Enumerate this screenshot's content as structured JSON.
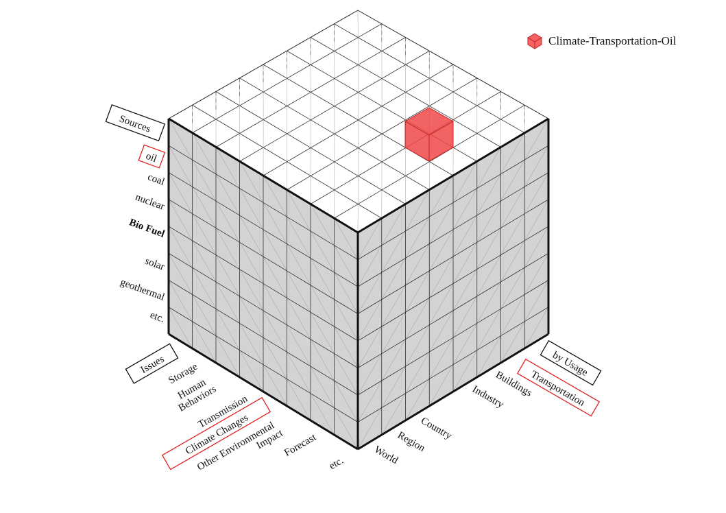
{
  "legend": {
    "label": "Climate-Transportation-Oil",
    "color": "#f04848"
  },
  "axes": {
    "sources": {
      "title": "Sources",
      "items": [
        "oil",
        "coal",
        "nuclear",
        "Bio Fuel",
        "solar",
        "geothermal",
        "etc."
      ],
      "highlighted": "oil"
    },
    "issues": {
      "title": "Issues",
      "items": [
        "Storage",
        "Human Behaviors",
        "Transmission",
        "Climate Changes",
        "Other Environmental Impact",
        "Forecast",
        "etc."
      ],
      "highlighted": "Climate Changes"
    },
    "usage": {
      "title": "by Usage",
      "items": [
        "World",
        "Region",
        "Country",
        "Industry",
        "Buildings",
        "Transportation"
      ],
      "highlighted": "Transportation"
    }
  },
  "colors": {
    "highlight": "#e02020",
    "cube_face": "#d3d3d5",
    "grid": "#333333"
  }
}
